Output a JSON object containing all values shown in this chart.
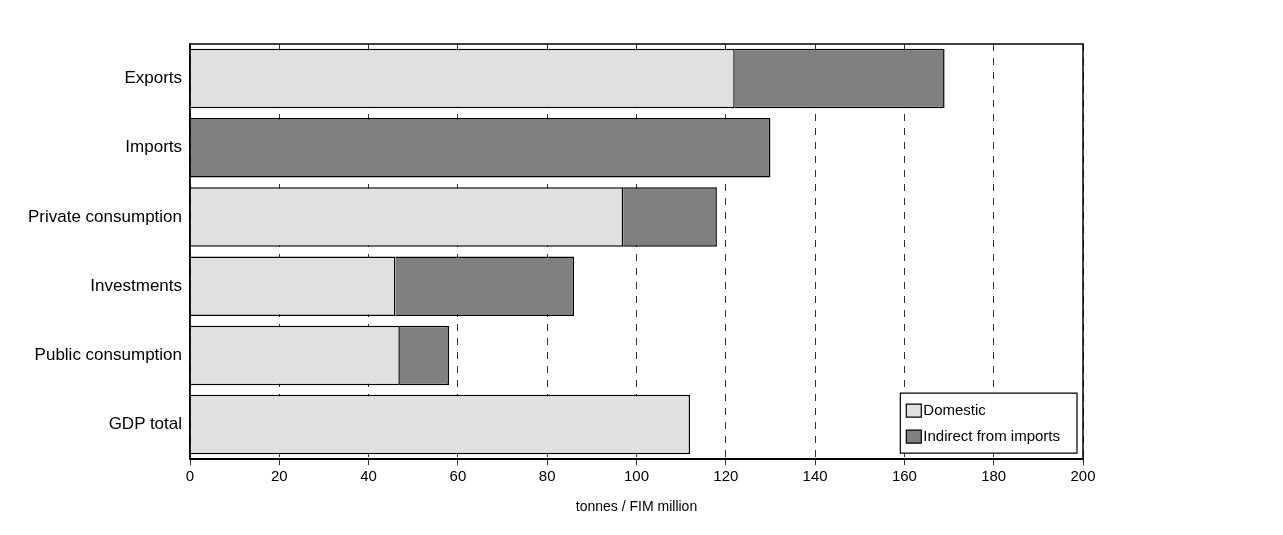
{
  "chart_data": {
    "type": "bar",
    "orientation": "horizontal",
    "stacked": true,
    "xlabel": "tonnes / FIM million",
    "categories": [
      "Exports",
      "Imports",
      "Private consumption",
      "Investments",
      "Public consumption",
      "GDP total"
    ],
    "series": [
      {
        "name": "Domestic",
        "color": "#e0e0e0",
        "values": [
          122,
          0,
          97,
          46,
          47,
          112
        ]
      },
      {
        "name": "Indirect from imports",
        "color": "#808080",
        "values": [
          47,
          130,
          21,
          40,
          11,
          0
        ]
      }
    ],
    "xlim": [
      0,
      200
    ],
    "xticks": [
      0,
      20,
      40,
      60,
      80,
      100,
      120,
      140,
      160,
      180,
      200
    ],
    "grid": "x",
    "legend": "bottom right"
  }
}
